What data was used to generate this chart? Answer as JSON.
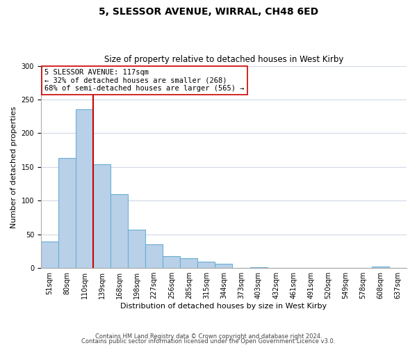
{
  "title": "5, SLESSOR AVENUE, WIRRAL, CH48 6ED",
  "subtitle": "Size of property relative to detached houses in West Kirby",
  "xlabel": "Distribution of detached houses by size in West Kirby",
  "ylabel": "Number of detached properties",
  "categories": [
    "51sqm",
    "80sqm",
    "110sqm",
    "139sqm",
    "168sqm",
    "198sqm",
    "227sqm",
    "256sqm",
    "285sqm",
    "315sqm",
    "344sqm",
    "373sqm",
    "403sqm",
    "432sqm",
    "461sqm",
    "491sqm",
    "520sqm",
    "549sqm",
    "578sqm",
    "608sqm",
    "637sqm"
  ],
  "values": [
    39,
    163,
    236,
    154,
    110,
    57,
    35,
    18,
    15,
    9,
    6,
    0,
    1,
    0,
    0,
    0,
    0,
    0,
    0,
    2,
    0
  ],
  "bar_color": "#b8d0e8",
  "bar_edge_color": "#6aaed6",
  "reference_line_index": 2,
  "reference_line_color": "#cc0000",
  "annotation_line1": "5 SLESSOR AVENUE: 117sqm",
  "annotation_line2": "← 32% of detached houses are smaller (268)",
  "annotation_line3": "68% of semi-detached houses are larger (565) →",
  "annotation_box_edge": "#cc0000",
  "ylim": [
    0,
    300
  ],
  "yticks": [
    0,
    50,
    100,
    150,
    200,
    250,
    300
  ],
  "footer_line1": "Contains HM Land Registry data © Crown copyright and database right 2024.",
  "footer_line2": "Contains public sector information licensed under the Open Government Licence v3.0.",
  "background_color": "#ffffff",
  "grid_color": "#d0d8e8",
  "title_fontsize": 10,
  "subtitle_fontsize": 8.5,
  "tick_fontsize": 7,
  "axis_label_fontsize": 8,
  "annotation_fontsize": 7.5,
  "footer_fontsize": 6
}
